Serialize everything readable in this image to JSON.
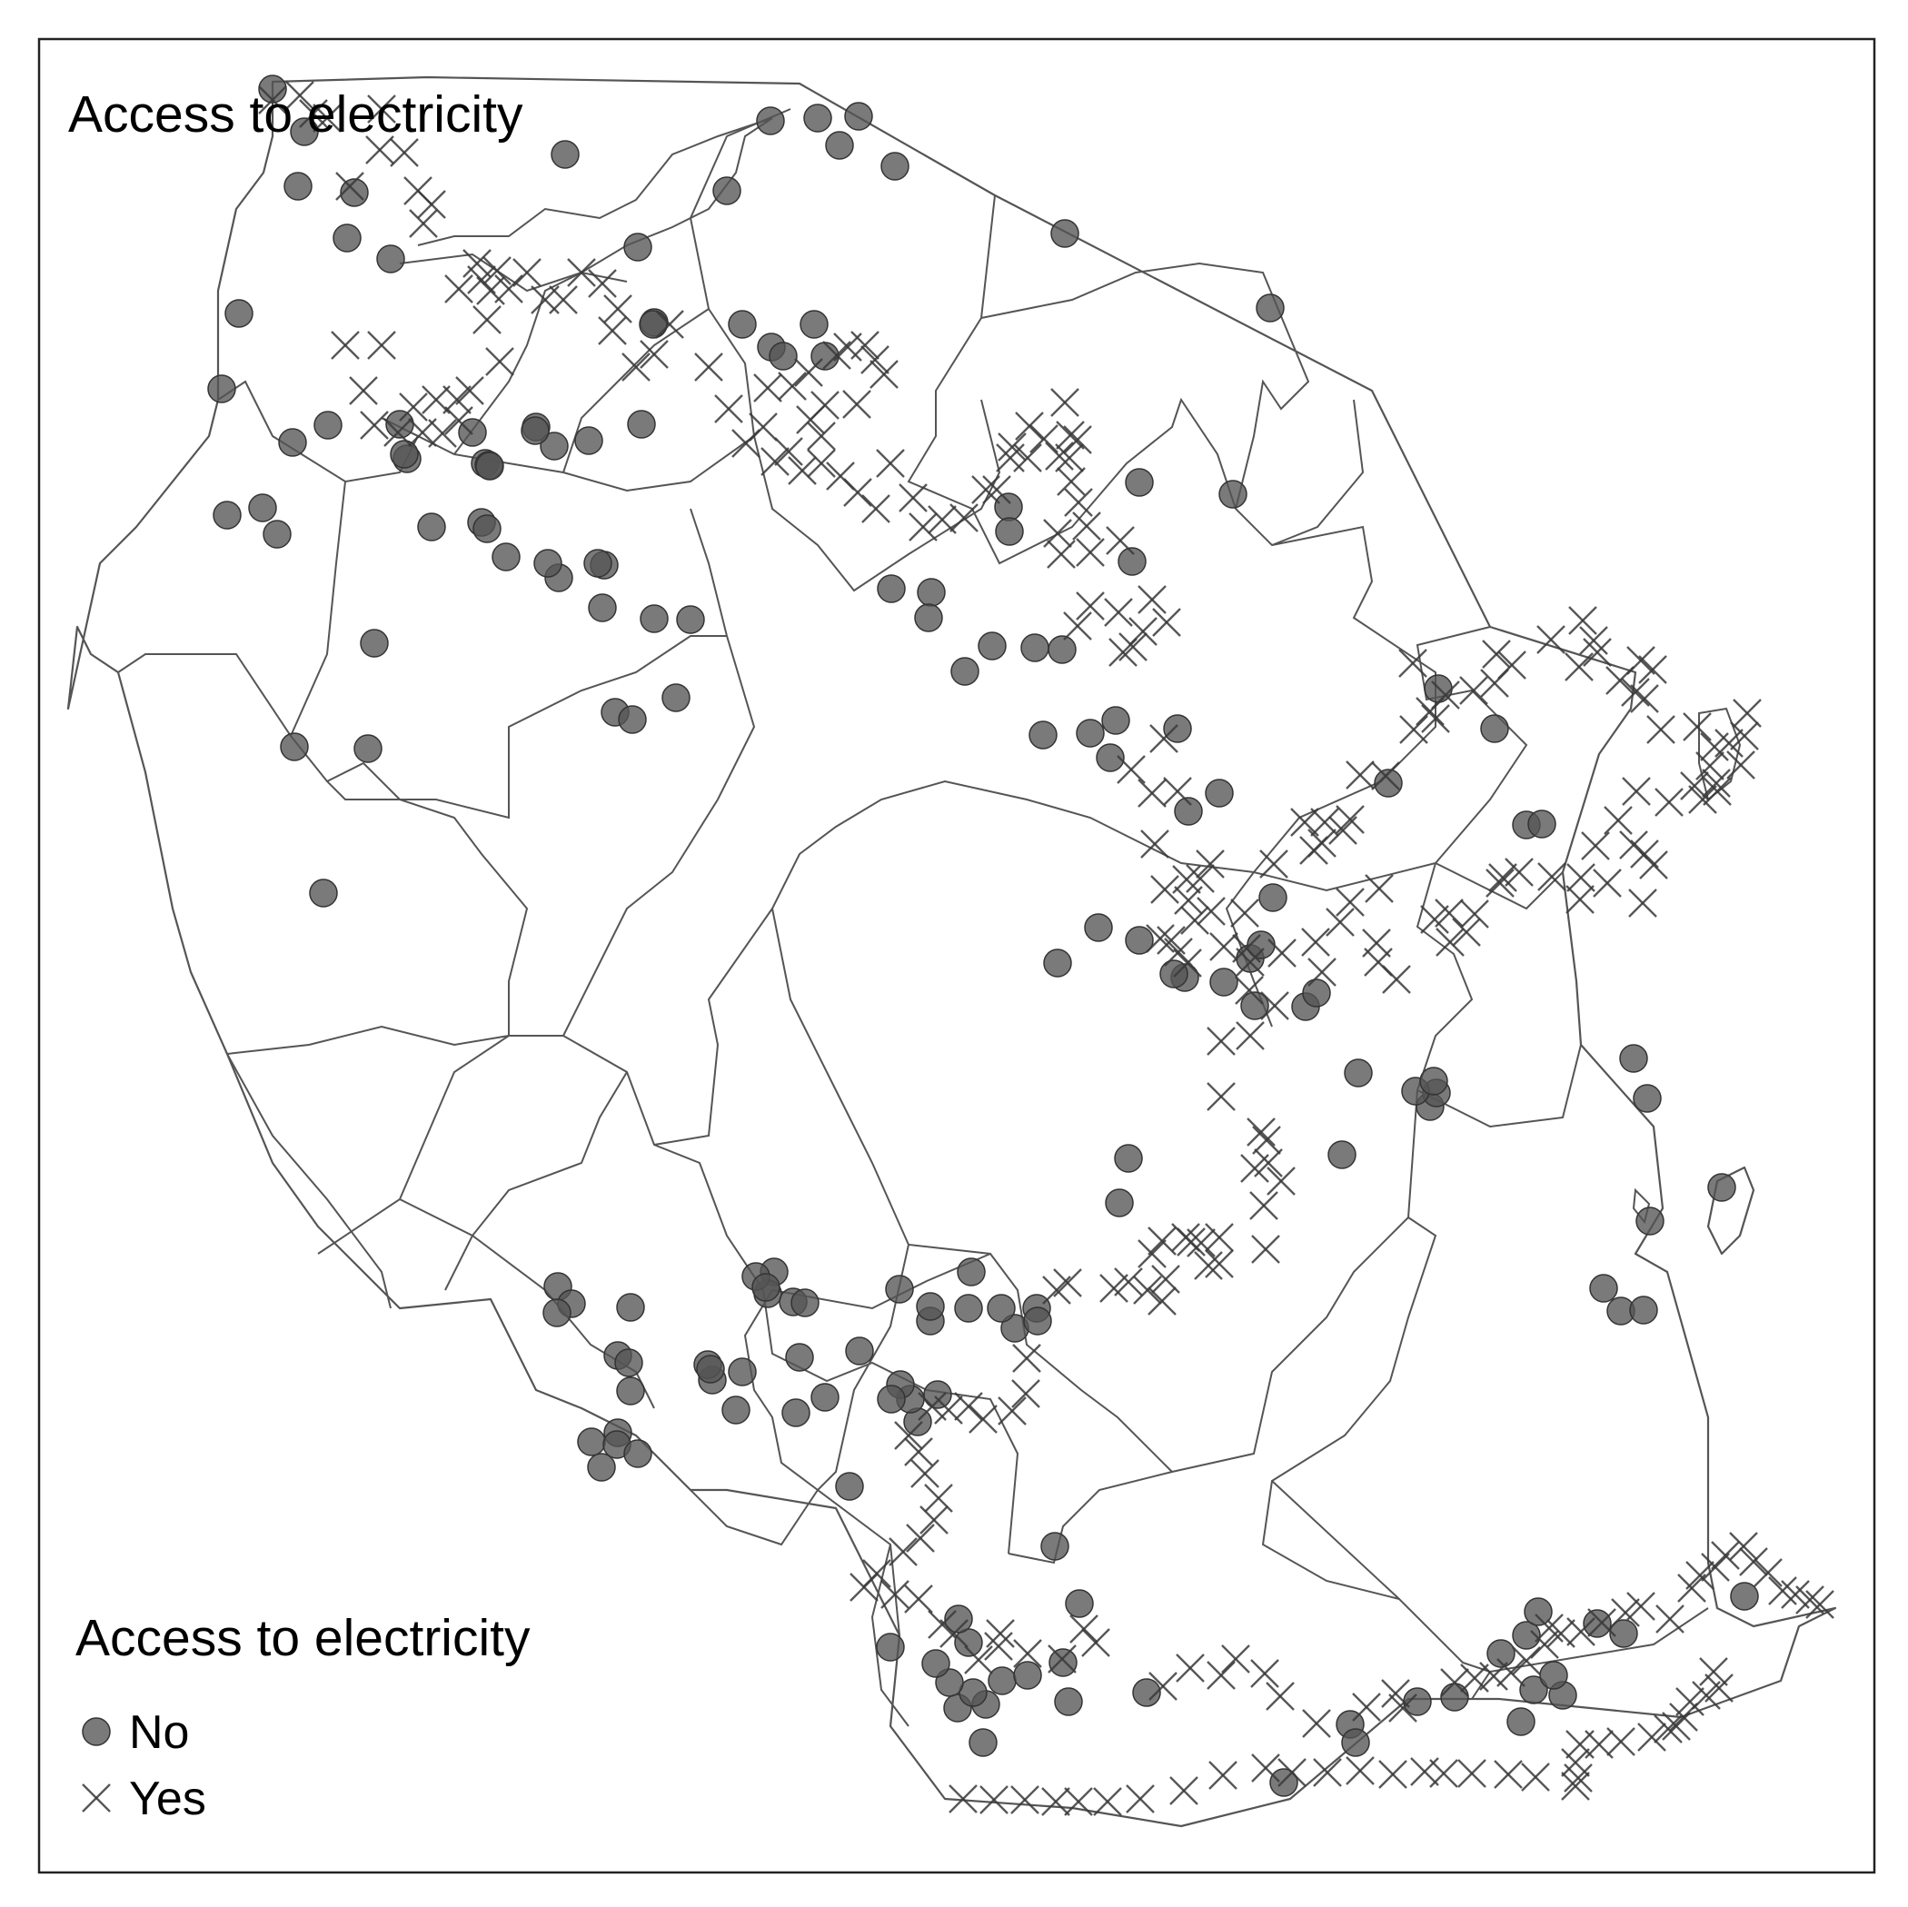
{
  "map": {
    "title": "Access to electricity",
    "legend": {
      "title": "Access to electricity",
      "items": [
        {
          "label": "No",
          "symbol": "filled-circle-icon",
          "color": "#555555"
        },
        {
          "label": "Yes",
          "symbol": "cross-icon",
          "color": "#3a3a3a"
        }
      ]
    },
    "colors": {
      "marker": "#555555",
      "boundary": "#555555",
      "background": "#ffffff"
    }
  }
}
